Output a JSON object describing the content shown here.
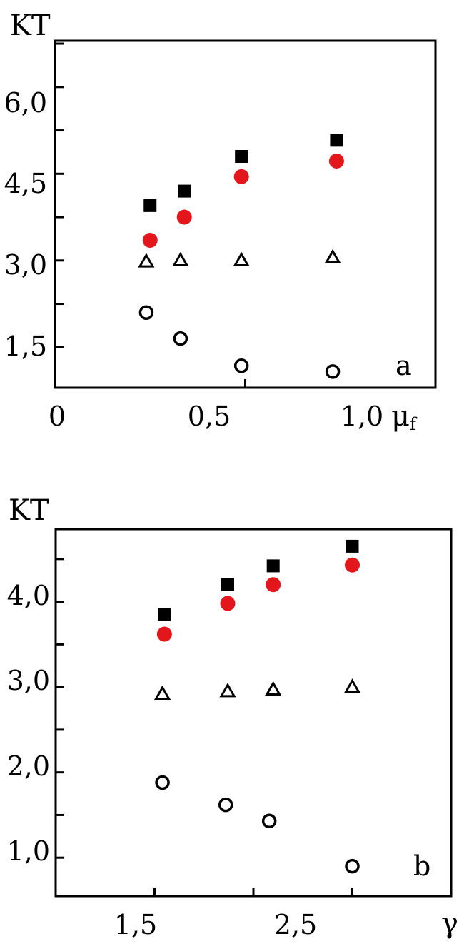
{
  "chart_data": [
    {
      "type": "scatter",
      "panel_label": "a",
      "ylabel": "KT",
      "xlabel_main": "μ",
      "xlabel_sub": "f",
      "xlim": [
        0,
        1.0
      ],
      "ylim": [
        0.8,
        6.8
      ],
      "xticks": [
        {
          "v": 0,
          "label": "0"
        },
        {
          "v": 0.5,
          "label": "0,5"
        },
        {
          "v": 1.0,
          "label": "1,0"
        }
      ],
      "yticks": [
        {
          "v": 1.5,
          "label": "1,5"
        },
        {
          "v": 3.0,
          "label": "3,0"
        },
        {
          "v": 4.5,
          "label": "4,5"
        },
        {
          "v": 6.0,
          "label": "6,0"
        }
      ],
      "series": [
        {
          "marker": "square",
          "color": "#000000",
          "x": [
            0.25,
            0.34,
            0.49,
            0.74
          ],
          "y": [
            3.95,
            4.2,
            4.8,
            5.08
          ]
        },
        {
          "marker": "circle-filled",
          "color": "#e3161b",
          "x": [
            0.25,
            0.34,
            0.49,
            0.74
          ],
          "y": [
            3.35,
            3.75,
            4.45,
            4.72
          ]
        },
        {
          "marker": "triangle",
          "color": "#000000",
          "x": [
            0.24,
            0.33,
            0.49,
            0.73
          ],
          "y": [
            2.98,
            3.0,
            3.0,
            3.05
          ]
        },
        {
          "marker": "circle-open",
          "color": "#000000",
          "x": [
            0.24,
            0.33,
            0.49,
            0.73
          ],
          "y": [
            2.1,
            1.65,
            1.18,
            1.08
          ]
        }
      ]
    },
    {
      "type": "scatter",
      "panel_label": "b",
      "ylabel": "KT",
      "xlabel_main": "γ",
      "xlim": [
        1.0,
        3.0
      ],
      "ylim": [
        0.55,
        4.85
      ],
      "xticks": [
        {
          "v": 1.5,
          "label": "1,5"
        },
        {
          "v": 2.5,
          "label": "2,5"
        }
      ],
      "yticks": [
        {
          "v": 1.0,
          "label": "1,0"
        },
        {
          "v": 2.0,
          "label": "2,0"
        },
        {
          "v": 3.0,
          "label": "3,0"
        },
        {
          "v": 4.0,
          "label": "4,0"
        }
      ],
      "series": [
        {
          "marker": "square",
          "color": "#000000",
          "x": [
            1.55,
            1.87,
            2.1,
            2.5
          ],
          "y": [
            3.85,
            4.2,
            4.42,
            4.65
          ]
        },
        {
          "marker": "circle-filled",
          "color": "#e3161b",
          "x": [
            1.55,
            1.87,
            2.1,
            2.5
          ],
          "y": [
            3.62,
            3.98,
            4.2,
            4.43
          ]
        },
        {
          "marker": "triangle",
          "color": "#000000",
          "x": [
            1.54,
            1.87,
            2.1,
            2.5
          ],
          "y": [
            2.92,
            2.95,
            2.97,
            3.0
          ]
        },
        {
          "marker": "circle-open",
          "color": "#000000",
          "x": [
            1.54,
            1.86,
            2.08,
            2.5
          ],
          "y": [
            1.88,
            1.62,
            1.43,
            0.9
          ]
        }
      ]
    }
  ]
}
